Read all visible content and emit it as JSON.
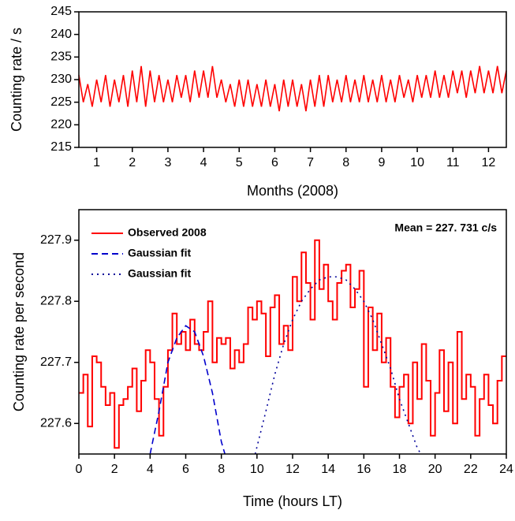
{
  "chart_data": [
    {
      "type": "line",
      "xlabel": "Months (2008)",
      "ylabel": "Counting rate / s",
      "xlim": [
        0.5,
        12.5
      ],
      "xticks": [
        1,
        2,
        3,
        4,
        5,
        6,
        7,
        8,
        9,
        10,
        11,
        12
      ],
      "ylim": [
        215,
        245
      ],
      "yticks": [
        215,
        220,
        225,
        230,
        235,
        240,
        245
      ],
      "series": [
        {
          "color": "#ff0000",
          "x": [
            0.5,
            0.625,
            0.75,
            0.875,
            1.0,
            1.125,
            1.25,
            1.375,
            1.5,
            1.625,
            1.75,
            1.875,
            2.0,
            2.125,
            2.25,
            2.375,
            2.5,
            2.625,
            2.75,
            2.875,
            3.0,
            3.125,
            3.25,
            3.375,
            3.5,
            3.625,
            3.75,
            3.875,
            4.0,
            4.125,
            4.25,
            4.375,
            4.5,
            4.625,
            4.75,
            4.875,
            5.0,
            5.125,
            5.25,
            5.375,
            5.5,
            5.625,
            5.75,
            5.875,
            6.0,
            6.125,
            6.25,
            6.375,
            6.5,
            6.625,
            6.75,
            6.875,
            7.0,
            7.125,
            7.25,
            7.375,
            7.5,
            7.625,
            7.75,
            7.875,
            8.0,
            8.125,
            8.25,
            8.375,
            8.5,
            8.625,
            8.75,
            8.875,
            9.0,
            9.125,
            9.25,
            9.375,
            9.5,
            9.625,
            9.75,
            9.875,
            10.0,
            10.125,
            10.25,
            10.375,
            10.5,
            10.625,
            10.75,
            10.875,
            11.0,
            11.125,
            11.25,
            11.375,
            11.5,
            11.625,
            11.75,
            11.875,
            12.0,
            12.125,
            12.25,
            12.375,
            12.5
          ],
          "values": [
            231,
            225,
            229,
            224,
            230,
            225,
            231,
            224,
            230,
            225,
            231,
            224,
            232,
            225,
            233,
            224,
            232,
            225,
            231,
            225,
            230,
            225,
            231,
            226,
            231,
            225,
            232,
            226,
            232,
            226,
            233,
            226,
            230,
            225,
            229,
            224,
            230,
            224,
            230,
            224,
            229,
            224,
            230,
            224,
            229,
            223,
            230,
            224,
            230,
            224,
            229,
            223,
            230,
            224,
            231,
            224,
            231,
            225,
            230,
            225,
            231,
            225,
            230,
            225,
            231,
            225,
            230,
            225,
            231,
            225,
            230,
            225,
            231,
            226,
            230,
            225,
            231,
            226,
            231,
            226,
            232,
            226,
            231,
            226,
            232,
            227,
            232,
            226,
            232,
            227,
            233,
            227,
            232,
            227,
            233,
            227,
            232
          ]
        }
      ]
    },
    {
      "type": "line",
      "xlabel": "Time (hours LT)",
      "ylabel": "Counting rate per second",
      "annotation": "Mean = 227. 731 c/s",
      "xlim": [
        0,
        24
      ],
      "xticks": [
        0,
        2,
        4,
        6,
        8,
        10,
        12,
        14,
        16,
        18,
        20,
        22,
        24
      ],
      "ylim": [
        227.55,
        227.95
      ],
      "yticks": [
        227.6,
        227.7,
        227.8,
        227.9
      ],
      "series": [
        {
          "name": "Observed 2008",
          "color": "#ff0000",
          "step": true,
          "x": [
            0,
            0.25,
            0.5,
            0.75,
            1,
            1.25,
            1.5,
            1.75,
            2,
            2.25,
            2.5,
            2.75,
            3,
            3.25,
            3.5,
            3.75,
            4,
            4.25,
            4.5,
            4.75,
            5,
            5.25,
            5.5,
            5.75,
            6,
            6.25,
            6.5,
            6.75,
            7,
            7.25,
            7.5,
            7.75,
            8,
            8.25,
            8.5,
            8.75,
            9,
            9.25,
            9.5,
            9.75,
            10,
            10.25,
            10.5,
            10.75,
            11,
            11.25,
            11.5,
            11.75,
            12,
            12.25,
            12.5,
            12.75,
            13,
            13.25,
            13.5,
            13.75,
            14,
            14.25,
            14.5,
            14.75,
            15,
            15.25,
            15.5,
            15.75,
            16,
            16.25,
            16.5,
            16.75,
            17,
            17.25,
            17.5,
            17.75,
            18,
            18.25,
            18.5,
            18.75,
            19,
            19.25,
            19.5,
            19.75,
            20,
            20.25,
            20.5,
            20.75,
            21,
            21.25,
            21.5,
            21.75,
            22,
            22.25,
            22.5,
            22.75,
            23,
            23.25,
            23.5,
            23.75
          ],
          "values": [
            227.65,
            227.68,
            227.595,
            227.71,
            227.7,
            227.66,
            227.63,
            227.65,
            227.56,
            227.63,
            227.64,
            227.66,
            227.69,
            227.62,
            227.67,
            227.72,
            227.7,
            227.64,
            227.58,
            227.66,
            227.72,
            227.78,
            227.73,
            227.75,
            227.72,
            227.77,
            227.73,
            227.72,
            227.75,
            227.8,
            227.7,
            227.74,
            227.73,
            227.74,
            227.69,
            227.72,
            227.7,
            227.73,
            227.79,
            227.77,
            227.8,
            227.78,
            227.71,
            227.79,
            227.81,
            227.73,
            227.76,
            227.72,
            227.84,
            227.8,
            227.88,
            227.83,
            227.77,
            227.9,
            227.82,
            227.86,
            227.8,
            227.77,
            227.83,
            227.85,
            227.86,
            227.79,
            227.82,
            227.85,
            227.66,
            227.79,
            227.72,
            227.78,
            227.7,
            227.74,
            227.66,
            227.61,
            227.66,
            227.68,
            227.6,
            227.7,
            227.64,
            227.73,
            227.67,
            227.58,
            227.65,
            227.72,
            227.62,
            227.7,
            227.6,
            227.75,
            227.64,
            227.68,
            227.66,
            227.58,
            227.64,
            227.68,
            227.63,
            227.6,
            227.67,
            227.71
          ]
        },
        {
          "name": "Gaussian fit",
          "color": "#0000cc",
          "dash": "dashed",
          "x": [
            4,
            4.5,
            5,
            5.5,
            6,
            6.5,
            7,
            7.5,
            8,
            8.2
          ],
          "values": [
            227.55,
            227.62,
            227.7,
            227.74,
            227.76,
            227.75,
            227.71,
            227.65,
            227.57,
            227.55
          ]
        },
        {
          "name": "Gaussian fit",
          "color": "#000099",
          "dash": "dotted",
          "x": [
            9.9,
            10.5,
            11,
            11.5,
            12,
            12.5,
            13,
            13.5,
            14,
            14.5,
            15,
            15.5,
            16,
            16.5,
            17,
            17.5,
            18,
            18.5,
            19,
            19.2
          ],
          "values": [
            227.55,
            227.62,
            227.68,
            227.73,
            227.77,
            227.8,
            227.82,
            227.835,
            227.84,
            227.84,
            227.835,
            227.82,
            227.8,
            227.77,
            227.73,
            227.69,
            227.64,
            227.6,
            227.56,
            227.55
          ]
        }
      ]
    }
  ]
}
